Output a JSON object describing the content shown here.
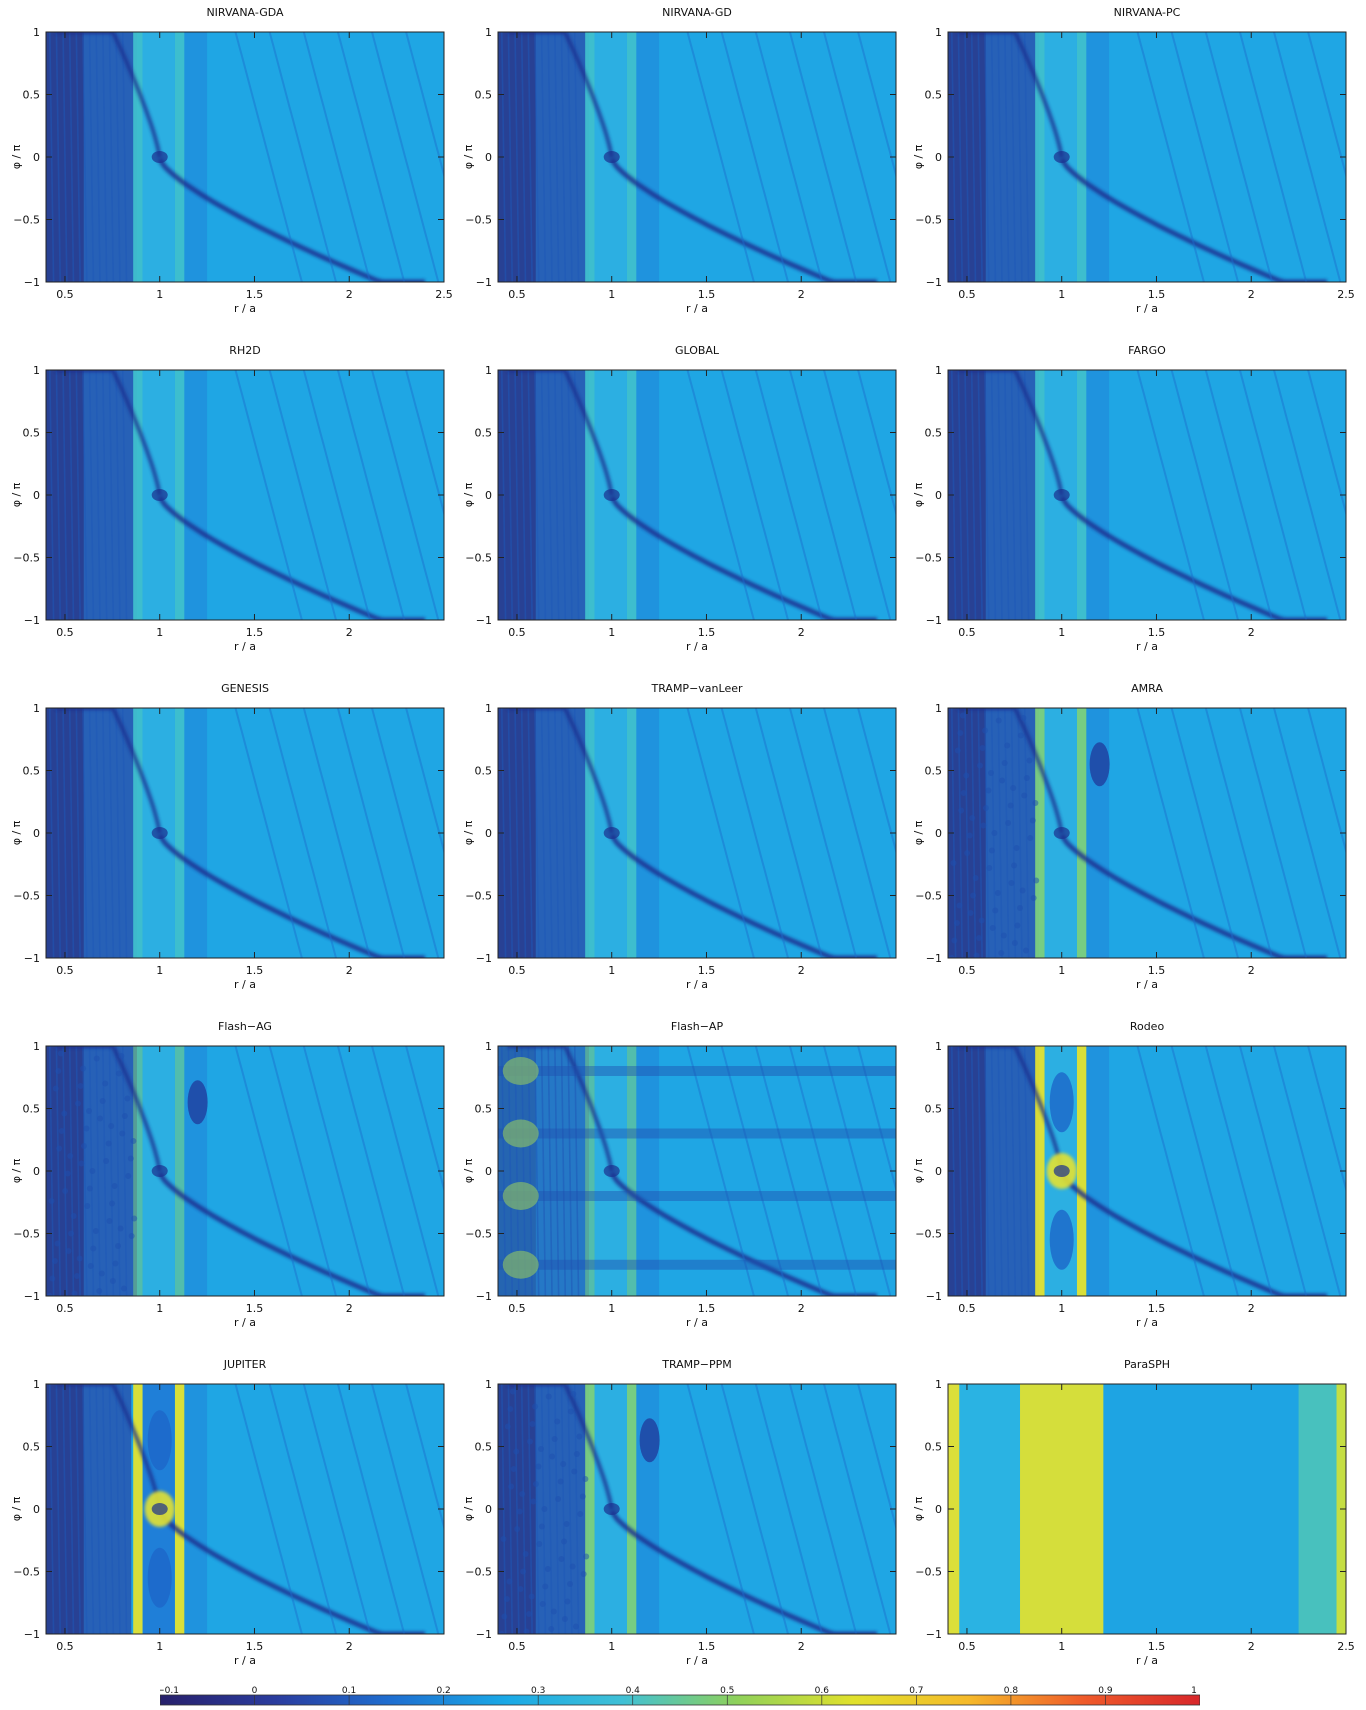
{
  "chart_data": [
    {
      "type": "heatmap",
      "title": "NIRVANA-GDA",
      "xlabel": "r / a",
      "ylabel": "φ / π",
      "xlim": [
        0.4,
        2.5
      ],
      "ylim": [
        -1,
        1
      ],
      "xticks": [
        "0.5",
        "1",
        "1.5",
        "2",
        "2.5"
      ],
      "yticks": [
        "1",
        "0.5",
        "0",
        "−0.5",
        "−1"
      ],
      "pattern": "standard"
    },
    {
      "type": "heatmap",
      "title": "NIRVANA-GD",
      "xlabel": "r / a",
      "ylabel": "φ / π",
      "xlim": [
        0.4,
        2.5
      ],
      "ylim": [
        -1,
        1
      ],
      "xticks": [
        "0.5",
        "1",
        "1.5",
        "2"
      ],
      "yticks": [
        "1",
        "0.5",
        "0",
        "−0.5",
        "−1"
      ],
      "pattern": "standard"
    },
    {
      "type": "heatmap",
      "title": "NIRVANA-PC",
      "xlabel": "r / a",
      "ylabel": "φ / π",
      "xlim": [
        0.4,
        2.5
      ],
      "ylim": [
        -1,
        1
      ],
      "xticks": [
        "0.5",
        "1",
        "1.5",
        "2",
        "2.5"
      ],
      "yticks": [
        "1",
        "0.5",
        "0",
        "−0.5",
        "−1"
      ],
      "pattern": "standard"
    },
    {
      "type": "heatmap",
      "title": "RH2D",
      "xlabel": "r / a",
      "ylabel": "φ / π",
      "xlim": [
        0.4,
        2.5
      ],
      "ylim": [
        -1,
        1
      ],
      "xticks": [
        "0.5",
        "1",
        "1.5",
        "2"
      ],
      "yticks": [
        "1",
        "0.5",
        "0",
        "−0.5",
        "−1"
      ],
      "pattern": "standard"
    },
    {
      "type": "heatmap",
      "title": "GLOBAL",
      "xlabel": "r / a",
      "ylabel": "φ / π",
      "xlim": [
        0.4,
        2.5
      ],
      "ylim": [
        -1,
        1
      ],
      "xticks": [
        "0.5",
        "1",
        "1.5",
        "2"
      ],
      "yticks": [
        "1",
        "0.5",
        "0",
        "−0.5",
        "−1"
      ],
      "pattern": "standard"
    },
    {
      "type": "heatmap",
      "title": "FARGO",
      "xlabel": "r / a",
      "ylabel": "φ / π",
      "xlim": [
        0.4,
        2.5
      ],
      "ylim": [
        -1,
        1
      ],
      "xticks": [
        "0.5",
        "1",
        "1.5",
        "2"
      ],
      "yticks": [
        "1",
        "0.5",
        "0",
        "−0.5",
        "−1"
      ],
      "pattern": "standard"
    },
    {
      "type": "heatmap",
      "title": "GENESIS",
      "xlabel": "r / a",
      "ylabel": "φ / π",
      "xlim": [
        0.4,
        2.5
      ],
      "ylim": [
        -1,
        1
      ],
      "xticks": [
        "0.5",
        "1",
        "1.5",
        "2"
      ],
      "yticks": [
        "1",
        "0.5",
        "0",
        "−0.5",
        "−1"
      ],
      "pattern": "standard"
    },
    {
      "type": "heatmap",
      "title": "TRAMP−vanLeer",
      "xlabel": "r / a",
      "ylabel": "φ / π",
      "xlim": [
        0.4,
        2.5
      ],
      "ylim": [
        -1,
        1
      ],
      "xticks": [
        "0.5",
        "1",
        "1.5",
        "2"
      ],
      "yticks": [
        "1",
        "0.5",
        "0",
        "−0.5",
        "−1"
      ],
      "pattern": "standard"
    },
    {
      "type": "heatmap",
      "title": "AMRA",
      "xlabel": "r / a",
      "ylabel": "φ / π",
      "xlim": [
        0.4,
        2.5
      ],
      "ylim": [
        -1,
        1
      ],
      "xticks": [
        "0.5",
        "1",
        "1.5",
        "2"
      ],
      "yticks": [
        "1",
        "0.5",
        "0",
        "−0.5",
        "−1"
      ],
      "pattern": "noisy"
    },
    {
      "type": "heatmap",
      "title": "Flash−AG",
      "xlabel": "r / a",
      "ylabel": "φ / π",
      "xlim": [
        0.4,
        2.5
      ],
      "ylim": [
        -1,
        1
      ],
      "xticks": [
        "0.5",
        "1",
        "1.5",
        "2"
      ],
      "yticks": [
        "1",
        "0.5",
        "0",
        "−0.5",
        "−1"
      ],
      "pattern": "flashag"
    },
    {
      "type": "heatmap",
      "title": "Flash−AP",
      "xlabel": "r / a",
      "ylabel": "φ / π",
      "xlim": [
        0.4,
        2.5
      ],
      "ylim": [
        -1,
        1
      ],
      "xticks": [
        "0.5",
        "1",
        "1.5",
        "2"
      ],
      "yticks": [
        "1",
        "0.5",
        "0",
        "−0.5",
        "−1"
      ],
      "pattern": "flashap"
    },
    {
      "type": "heatmap",
      "title": "Rodeo",
      "xlabel": "r / a",
      "ylabel": "φ / π",
      "xlim": [
        0.4,
        2.5
      ],
      "ylim": [
        -1,
        1
      ],
      "xticks": [
        "0.5",
        "1",
        "1.5",
        "2"
      ],
      "yticks": [
        "1",
        "0.5",
        "0",
        "−0.5",
        "−1"
      ],
      "pattern": "strong"
    },
    {
      "type": "heatmap",
      "title": "JUPITER",
      "xlabel": "r / a",
      "ylabel": "φ / π",
      "xlim": [
        0.4,
        2.5
      ],
      "ylim": [
        -1,
        1
      ],
      "xticks": [
        "0.5",
        "1",
        "1.5",
        "2"
      ],
      "yticks": [
        "1",
        "0.5",
        "0",
        "−0.5",
        "−1"
      ],
      "pattern": "jupiter"
    },
    {
      "type": "heatmap",
      "title": "TRAMP−PPM",
      "xlabel": "r / a",
      "ylabel": "φ / π",
      "xlim": [
        0.4,
        2.5
      ],
      "ylim": [
        -1,
        1
      ],
      "xticks": [
        "0.5",
        "1",
        "1.5",
        "2"
      ],
      "yticks": [
        "1",
        "0.5",
        "0",
        "−0.5",
        "−1"
      ],
      "pattern": "ppm"
    },
    {
      "type": "heatmap",
      "title": "ParaSPH",
      "xlabel": "r / a",
      "ylabel": "φ / π",
      "xlim": [
        0.4,
        2.5
      ],
      "ylim": [
        -1,
        1
      ],
      "xticks": [
        "0.5",
        "1",
        "1.5",
        "2",
        "2.5"
      ],
      "yticks": [
        "1",
        "0.5",
        "0",
        "−0.5",
        "−1"
      ],
      "pattern": "sph"
    }
  ],
  "colorbar": {
    "ticks": [
      "−0.1",
      "0",
      "0.1",
      "0.2",
      "0.3",
      "0.4",
      "0.5",
      "0.6",
      "0.7",
      "0.8",
      "0.9",
      "1"
    ],
    "range": [
      -0.1,
      1
    ],
    "colors": [
      "#27206b",
      "#2a3c9e",
      "#1e6ed0",
      "#1aa9e6",
      "#3fc0d6",
      "#8fd15a",
      "#e0e12c",
      "#f5b92a",
      "#ef5a2a",
      "#d7262a"
    ]
  }
}
